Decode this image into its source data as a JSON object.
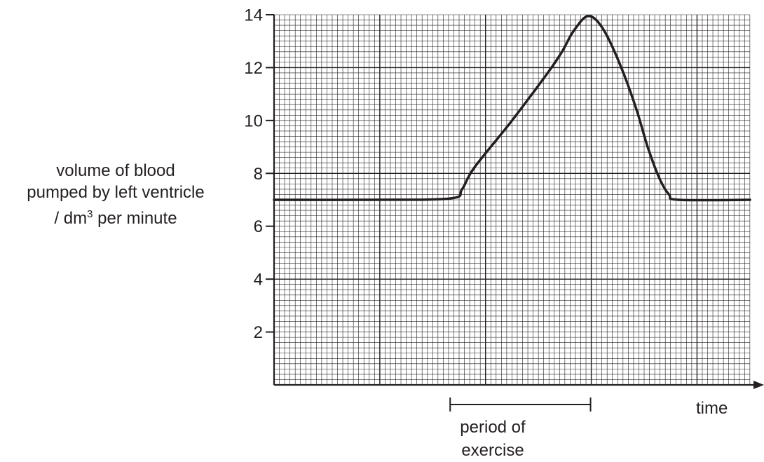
{
  "chart_data": {
    "type": "line",
    "title": "",
    "xlabel": "time",
    "ylabel": {
      "line1": "volume of blood",
      "line2": "pumped by left ventricle",
      "unit_prefix": "/ dm",
      "unit_sup": "3",
      "unit_suffix": " per minute"
    },
    "ylim": [
      0,
      14
    ],
    "xlim": [
      0,
      20
    ],
    "yticks": [
      "2",
      "4",
      "6",
      "8",
      "10",
      "12",
      "14"
    ],
    "grid": true,
    "series": [
      {
        "x": [
          0,
          4,
          7.4,
          7.9,
          8.4,
          10,
          11.5,
          12.1,
          12.6,
          13.2,
          13.8,
          14.5,
          15.2,
          15.7,
          16.2,
          16.6,
          17,
          20
        ],
        "values": [
          7,
          7,
          7.05,
          7.4,
          8.2,
          10,
          11.8,
          12.6,
          13.4,
          13.95,
          13.5,
          12.2,
          10.5,
          9,
          7.8,
          7.2,
          7,
          7
        ]
      }
    ],
    "annotation": {
      "label_line1": "period of",
      "label_line2": "exercise",
      "x_start": 7.4,
      "x_end": 13.3
    }
  }
}
